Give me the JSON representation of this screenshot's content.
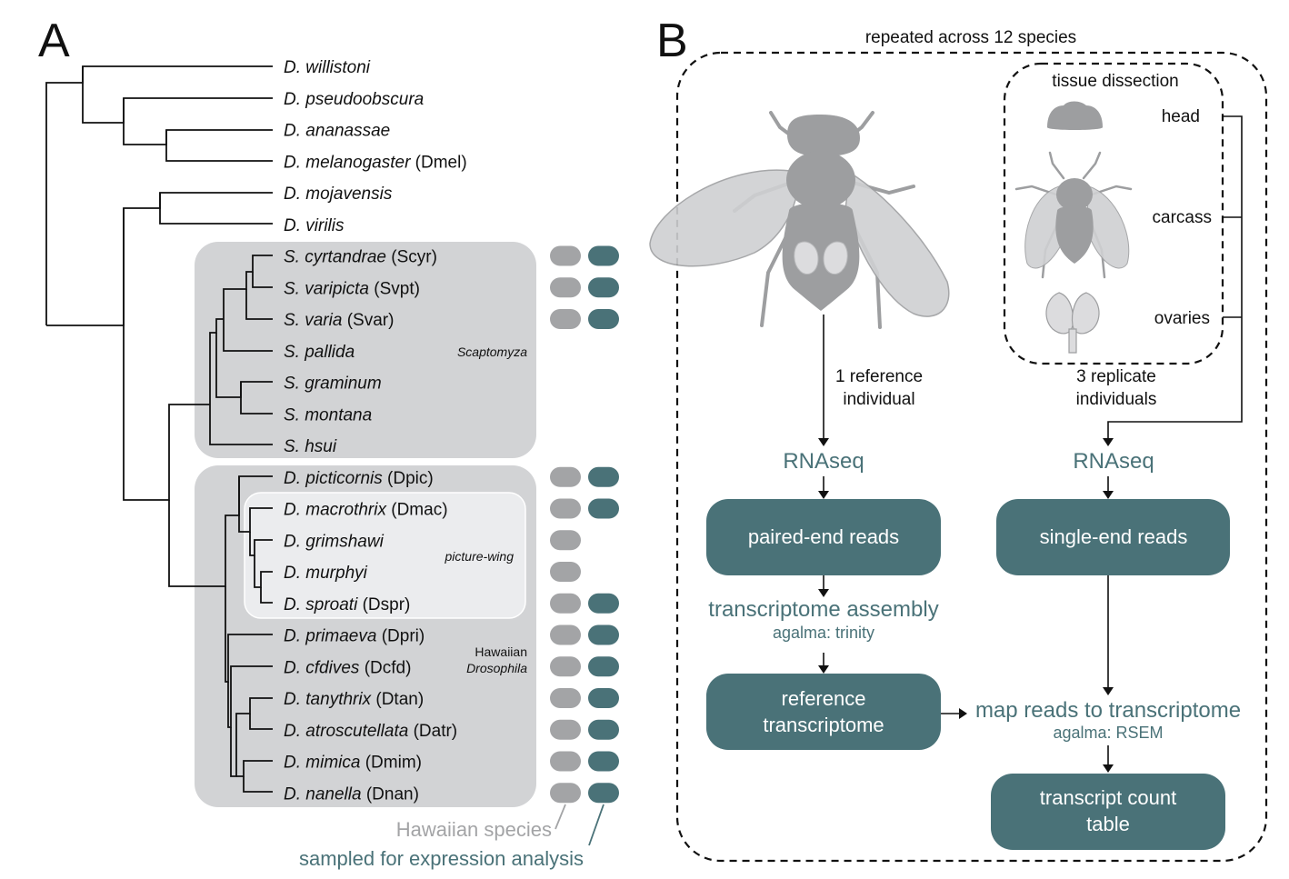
{
  "panel_a": {
    "letter": "A",
    "species": [
      {
        "italic": "D. willistoni",
        "code": "",
        "hawaiian": false,
        "expression": false
      },
      {
        "italic": "D. pseudoobscura",
        "code": "",
        "hawaiian": false,
        "expression": false
      },
      {
        "italic": "D. ananassae",
        "code": "",
        "hawaiian": false,
        "expression": false
      },
      {
        "italic": "D. melanogaster",
        "code": " (Dmel)",
        "hawaiian": false,
        "expression": false
      },
      {
        "italic": "D. mojavensis",
        "code": "",
        "hawaiian": false,
        "expression": false
      },
      {
        "italic": "D. virilis",
        "code": "",
        "hawaiian": false,
        "expression": false
      },
      {
        "italic": "S. cyrtandrae",
        "code": " (Scyr)",
        "hawaiian": true,
        "expression": true
      },
      {
        "italic": "S. varipicta",
        "code": " (Svpt)",
        "hawaiian": true,
        "expression": true
      },
      {
        "italic": "S. varia",
        "code": " (Svar)",
        "hawaiian": true,
        "expression": true
      },
      {
        "italic": "S. pallida",
        "code": "",
        "hawaiian": false,
        "expression": false
      },
      {
        "italic": "S. graminum",
        "code": "",
        "hawaiian": false,
        "expression": false
      },
      {
        "italic": "S. montana",
        "code": "",
        "hawaiian": false,
        "expression": false
      },
      {
        "italic": "S. hsui",
        "code": "",
        "hawaiian": false,
        "expression": false
      },
      {
        "italic": "D. picticornis",
        "code": " (Dpic)",
        "hawaiian": true,
        "expression": true
      },
      {
        "italic": "D. macrothrix",
        "code": " (Dmac)",
        "hawaiian": true,
        "expression": true
      },
      {
        "italic": "D. grimshawi",
        "code": "",
        "hawaiian": true,
        "expression": false
      },
      {
        "italic": "D. murphyi",
        "code": "",
        "hawaiian": true,
        "expression": false
      },
      {
        "italic": "D. sproati",
        "code": " (Dspr)",
        "hawaiian": true,
        "expression": true
      },
      {
        "italic": "D. primaeva",
        "code": " (Dpri)",
        "hawaiian": true,
        "expression": true
      },
      {
        "italic": "D. cfdives",
        "code": " (Dcfd)",
        "hawaiian": true,
        "expression": true
      },
      {
        "italic": "D. tanythrix",
        "code": " (Dtan)",
        "hawaiian": true,
        "expression": true
      },
      {
        "italic": "D. atroscutellata",
        "code": " (Datr)",
        "hawaiian": true,
        "expression": true
      },
      {
        "italic": "D. mimica",
        "code": " (Dmim)",
        "hawaiian": true,
        "expression": true
      },
      {
        "italic": "D. nanella",
        "code": " (Dnan)",
        "hawaiian": true,
        "expression": true
      }
    ],
    "group_scaptomyza": "Scaptomyza",
    "group_picture_wing": "picture-wing",
    "group_hawaiian_1": "Hawaiian",
    "group_hawaiian_2": "Drosophila",
    "legend_hawaiian": "Hawaiian species",
    "legend_expression": "sampled for expression analysis",
    "colors": {
      "hawaiian_pill": "#a3a4a6",
      "expression_pill": "#4a7278",
      "clade_box": "#d2d3d5",
      "picture_wing_box": "#ebecee"
    }
  },
  "panel_b": {
    "letter": "B",
    "repeated_label": "repeated across 12 species",
    "tissue_title": "tissue dissection",
    "tissues": {
      "head": "head",
      "carcass": "carcass",
      "ovaries": "ovaries"
    },
    "left_sample_1": "1 reference",
    "left_sample_2": "individual",
    "right_sample_1": "3 replicate",
    "right_sample_2": "individuals",
    "rnaseq_left": "RNAseq",
    "rnaseq_right": "RNAseq",
    "paired_end": "paired-end reads",
    "single_end": "single-end reads",
    "assembly": "transcriptome assembly",
    "assembly_tool": "agalma: trinity",
    "reference_1": "reference",
    "reference_2": "transcriptome",
    "map_reads": "map reads to transcriptome",
    "map_tool": "agalma: RSEM",
    "count_1": "transcript count",
    "count_2": "table",
    "colors": {
      "box": "#4a7278",
      "teal_text": "#4a7278",
      "fly": "#9d9ea0"
    }
  }
}
